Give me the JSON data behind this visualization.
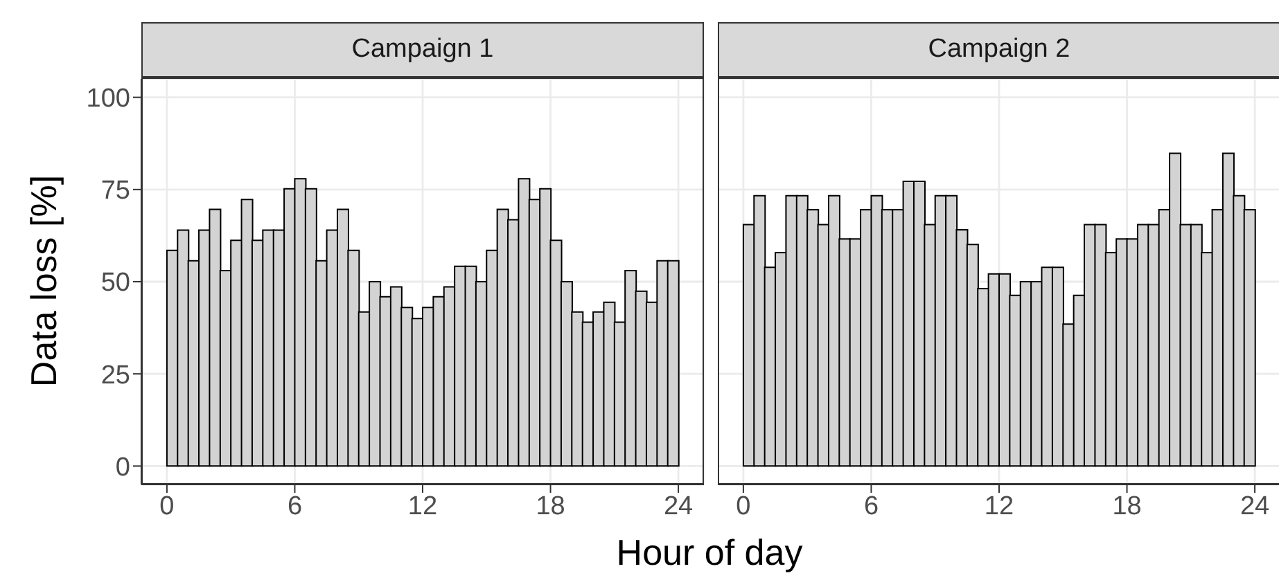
{
  "chart_data": [
    {
      "type": "histogram",
      "title": "Campaign 1",
      "xlabel": "Hour of day",
      "ylabel": "Data loss [%]",
      "color": "#d3d3d3",
      "grid": true,
      "bins": [
        0,
        0.5,
        1,
        1.5,
        2,
        2.5,
        3,
        3.5,
        4,
        4.5,
        5,
        5.5,
        6,
        6.5,
        7,
        7.5,
        8,
        8.5,
        9,
        9.5,
        10,
        10.5,
        11,
        11.5,
        12,
        12.5,
        13,
        13.5,
        14,
        14.5,
        15,
        15.5,
        16,
        16.5,
        17,
        17.5,
        18,
        18.5,
        19,
        19.5,
        20,
        20.5,
        21,
        21.5,
        22,
        22.5,
        23,
        23.5,
        24
      ],
      "values": [
        58.5,
        64,
        55.7,
        64,
        69.6,
        53,
        61.2,
        72.3,
        61.2,
        64,
        64,
        75.2,
        77.9,
        75.2,
        55.7,
        64,
        69.6,
        58.5,
        41.8,
        50,
        45.9,
        48.6,
        43,
        40,
        43,
        45.9,
        48.6,
        54.2,
        54.2,
        50,
        58.5,
        69.6,
        66.8,
        77.9,
        72.3,
        75.2,
        61.2,
        50,
        41.8,
        39,
        41.8,
        44.4,
        39,
        53,
        47.4,
        44.4,
        55.7,
        55.7
      ],
      "xlim": [
        -1.2,
        25.2
      ],
      "xticks": [
        0,
        6,
        12,
        18,
        24
      ],
      "ylim": [
        -5,
        105
      ],
      "yticks": [
        0,
        25,
        50,
        75,
        100
      ]
    },
    {
      "type": "histogram",
      "title": "Campaign 2",
      "color": "#d3d3d3",
      "grid": true,
      "tick_labels": "x",
      "bins": [
        0,
        0.5,
        1,
        1.5,
        2,
        2.5,
        3,
        3.5,
        4,
        4.5,
        5,
        5.5,
        6,
        6.5,
        7,
        7.5,
        8,
        8.5,
        9,
        9.5,
        10,
        10.5,
        11,
        11.5,
        12,
        12.5,
        13,
        13.5,
        14,
        14.5,
        15,
        15.5,
        16,
        16.5,
        17,
        17.5,
        18,
        18.5,
        19,
        19.5,
        20,
        20.5,
        21,
        21.5,
        22,
        22.5,
        23,
        23.5,
        24
      ],
      "values": [
        65.5,
        73.3,
        53.9,
        57.9,
        73.3,
        73.3,
        69.5,
        65.5,
        73.3,
        61.6,
        61.6,
        69.5,
        73.3,
        69.5,
        69.5,
        77.2,
        77.2,
        65.5,
        73.3,
        73.3,
        64.1,
        60.1,
        48.1,
        52.1,
        52.1,
        46.3,
        50,
        50,
        53.9,
        53.9,
        38.5,
        46.3,
        65.5,
        65.5,
        57.9,
        61.6,
        61.6,
        65.5,
        65.5,
        69.5,
        84.8,
        65.5,
        65.5,
        57.9,
        69.5,
        84.8,
        73.3,
        69.5
      ],
      "xlim": [
        -1.2,
        25.2
      ],
      "xticks": [
        0,
        6,
        12,
        18,
        24
      ],
      "ylim": [
        -5,
        105
      ],
      "yticks": [
        0,
        25,
        50,
        75,
        100
      ]
    }
  ]
}
